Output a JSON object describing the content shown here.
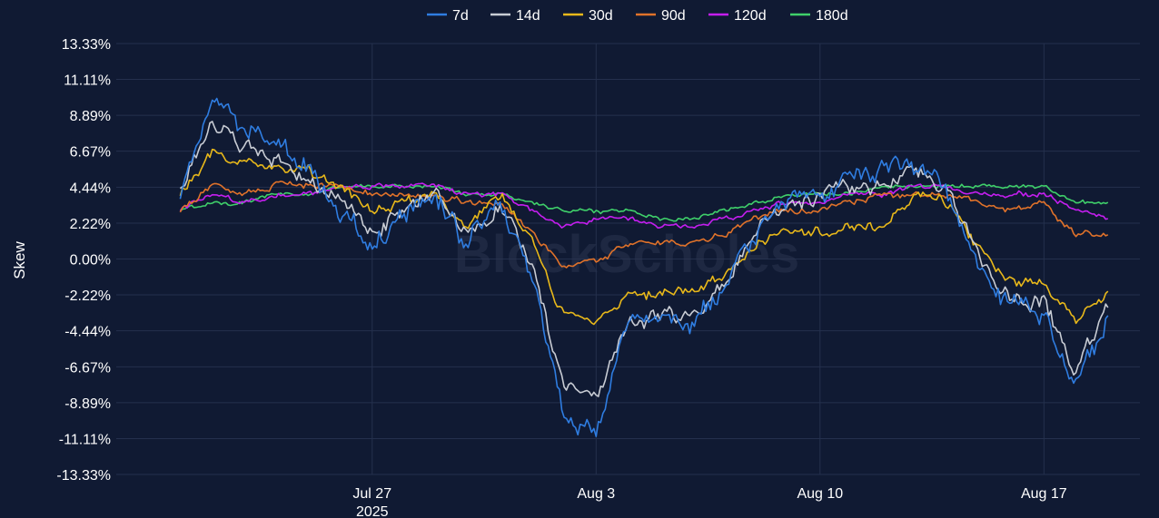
{
  "watermark": "BlockScholes",
  "chart_data": {
    "type": "line",
    "title": "",
    "xlabel": "",
    "ylabel": "Skew",
    "x_range": [
      "2025-07-19",
      "2025-08-20"
    ],
    "y_range": [
      -13.33,
      13.33
    ],
    "y_ticks": [
      13.33,
      11.11,
      8.89,
      6.67,
      4.44,
      2.22,
      0.0,
      -2.22,
      -4.44,
      -6.67,
      -8.89,
      -11.11,
      -13.33
    ],
    "y_tick_labels": [
      "13.33%",
      "11.11%",
      "8.89%",
      "6.67%",
      "4.44%",
      "2.22%",
      "0.00%",
      "-2.22%",
      "-4.44%",
      "-6.67%",
      "-8.89%",
      "-11.11%",
      "-13.33%"
    ],
    "x_ticks": [
      {
        "date": "2025-07-27",
        "label": "Jul 27",
        "sublabel": "2025"
      },
      {
        "date": "2025-08-03",
        "label": "Aug 3",
        "sublabel": ""
      },
      {
        "date": "2025-08-10",
        "label": "Aug 10",
        "sublabel": ""
      },
      {
        "date": "2025-08-17",
        "label": "Aug 17",
        "sublabel": ""
      }
    ],
    "grid": true,
    "legend_position": "top-center",
    "x": [
      "2025-07-21",
      "2025-07-22",
      "2025-07-23",
      "2025-07-24",
      "2025-07-25",
      "2025-07-26",
      "2025-07-27",
      "2025-07-28",
      "2025-07-29",
      "2025-07-30",
      "2025-07-31",
      "2025-08-01",
      "2025-08-02",
      "2025-08-03",
      "2025-08-04",
      "2025-08-05",
      "2025-08-06",
      "2025-08-07",
      "2025-08-08",
      "2025-08-09",
      "2025-08-10",
      "2025-08-11",
      "2025-08-12",
      "2025-08-13",
      "2025-08-14",
      "2025-08-15",
      "2025-08-16",
      "2025-08-17",
      "2025-08-18",
      "2025-08-19"
    ],
    "series": [
      {
        "name": "7d",
        "color": "#2f7de1",
        "values": [
          4.0,
          10.5,
          8.0,
          7.0,
          5.5,
          3.0,
          1.0,
          3.0,
          4.0,
          1.0,
          3.5,
          -1.0,
          -10.0,
          -10.5,
          -4.0,
          -4.0,
          -4.0,
          -2.0,
          1.5,
          4.0,
          4.0,
          5.0,
          5.5,
          6.0,
          4.0,
          -0.5,
          -3.0,
          -3.5,
          -8.0,
          -3.5
        ]
      },
      {
        "name": "14d",
        "color": "#c8ccd4",
        "values": [
          4.0,
          8.5,
          7.0,
          6.0,
          5.0,
          3.5,
          1.5,
          3.0,
          4.0,
          1.5,
          3.5,
          -0.5,
          -8.0,
          -8.5,
          -4.0,
          -3.5,
          -3.5,
          -1.5,
          1.5,
          3.5,
          4.0,
          4.5,
          4.5,
          5.5,
          4.0,
          0.0,
          -2.5,
          -2.5,
          -7.0,
          -3.0
        ]
      },
      {
        "name": "30d",
        "color": "#e8b81a",
        "values": [
          4.0,
          6.5,
          6.0,
          5.5,
          5.5,
          4.5,
          3.0,
          3.5,
          4.0,
          2.0,
          4.0,
          1.0,
          -3.5,
          -4.0,
          -2.5,
          -2.0,
          -2.0,
          -1.0,
          1.0,
          2.0,
          1.5,
          2.0,
          2.0,
          4.0,
          3.5,
          0.5,
          -1.5,
          -1.5,
          -4.0,
          -2.0
        ]
      },
      {
        "name": "90d",
        "color": "#e0722a",
        "values": [
          3.0,
          4.5,
          4.0,
          4.5,
          4.5,
          4.5,
          4.0,
          4.0,
          4.0,
          3.5,
          3.5,
          1.5,
          -0.5,
          0.0,
          1.0,
          1.0,
          1.0,
          1.5,
          2.5,
          3.0,
          3.0,
          3.5,
          4.0,
          4.0,
          4.0,
          3.5,
          3.0,
          3.5,
          1.5,
          1.5
        ]
      },
      {
        "name": "120d",
        "color": "#c51ef0",
        "values": [
          3.0,
          4.0,
          3.5,
          4.0,
          4.0,
          4.5,
          4.5,
          4.5,
          4.5,
          4.0,
          4.0,
          3.0,
          2.0,
          2.5,
          2.5,
          2.0,
          2.0,
          2.5,
          3.0,
          3.5,
          3.5,
          4.0,
          4.0,
          4.5,
          4.5,
          4.0,
          4.0,
          4.0,
          3.0,
          2.5
        ]
      },
      {
        "name": "180d",
        "color": "#3fd06a",
        "values": [
          3.0,
          3.5,
          3.5,
          4.0,
          4.0,
          4.5,
          4.5,
          4.5,
          4.5,
          4.0,
          4.0,
          3.5,
          3.0,
          3.0,
          3.0,
          2.5,
          2.5,
          3.0,
          3.5,
          4.0,
          4.0,
          4.0,
          4.5,
          4.5,
          4.5,
          4.5,
          4.5,
          4.5,
          3.5,
          3.5
        ]
      }
    ]
  }
}
